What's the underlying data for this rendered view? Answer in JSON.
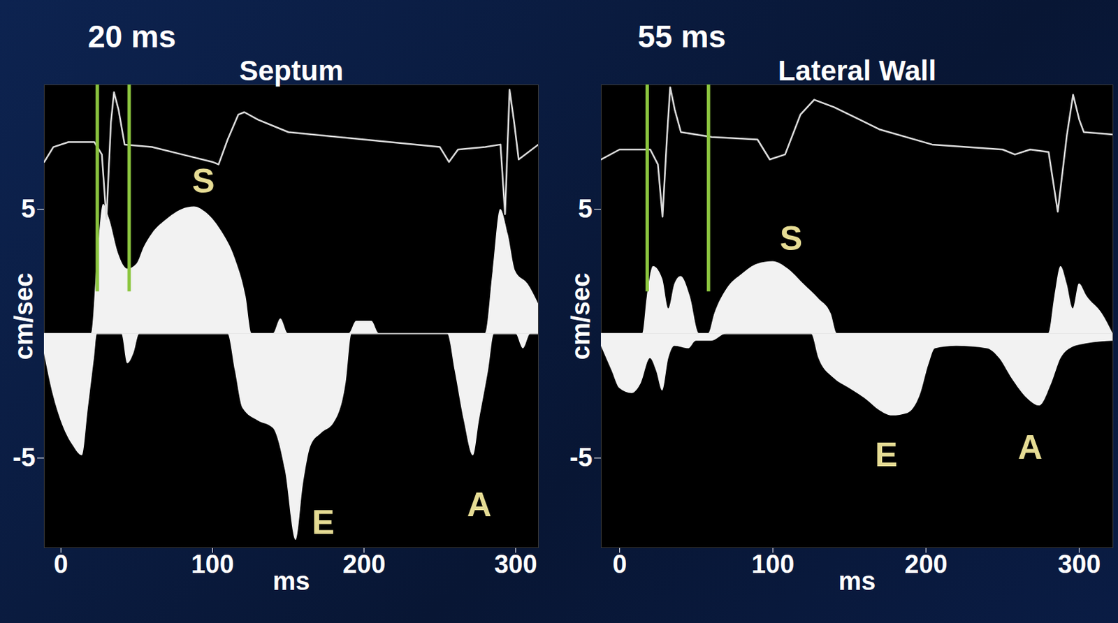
{
  "chart_data": [
    {
      "type": "area",
      "title": "Septum",
      "annotation": "20 ms",
      "x_label": "ms",
      "y_label": "cm/sec",
      "xlim": [
        -11,
        315
      ],
      "xticks": [
        0,
        100,
        200,
        300
      ],
      "ylim": [
        -8.6,
        10
      ],
      "yticks": [
        -5,
        5
      ],
      "marker_lines": {
        "color": "#8cc63f",
        "x": [
          24,
          45
        ]
      },
      "peak_labels": {
        "color": "#e6dc94",
        "items": [
          {
            "text": "S",
            "x": 94,
            "y": 6.1
          },
          {
            "text": "E",
            "x": 173,
            "y": -7.6
          },
          {
            "text": "A",
            "x": 276,
            "y": -6.9
          }
        ]
      },
      "series": [
        {
          "type": "area",
          "color": "#f2f2f2",
          "x": [
            -11,
            -5,
            0,
            20,
            24,
            28,
            32,
            38,
            44,
            50,
            55,
            60,
            70,
            80,
            88,
            95,
            105,
            115,
            122,
            126,
            140,
            145,
            150,
            190,
            195,
            205,
            210,
            280,
            285,
            290,
            295,
            300,
            308,
            315
          ],
          "values": [
            0,
            0,
            0,
            0,
            3.0,
            5.2,
            4.6,
            3.2,
            2.6,
            2.8,
            3.5,
            4.0,
            4.6,
            5.0,
            5.1,
            4.9,
            4.2,
            3.0,
            1.5,
            0,
            0,
            0.6,
            0,
            0,
            0.5,
            0.5,
            0,
            0,
            2.5,
            5.0,
            4.0,
            2.5,
            2.0,
            1.2
          ]
        },
        {
          "type": "area",
          "color": "#f2f2f2",
          "x": [
            -11,
            -5,
            0,
            8,
            14,
            18,
            22,
            24,
            40,
            44,
            48,
            52,
            110,
            115,
            120,
            130,
            140,
            148,
            155,
            160,
            165,
            172,
            180,
            188,
            192,
            255,
            260,
            266,
            272,
            276,
            282,
            286,
            300,
            305,
            310,
            315
          ],
          "values": [
            -0.8,
            -2.5,
            -3.5,
            -4.5,
            -4.9,
            -3.0,
            -1.0,
            0,
            0,
            -1.2,
            -0.8,
            0,
            0,
            -1.5,
            -3.0,
            -3.5,
            -3.8,
            -5.5,
            -8.3,
            -6.0,
            -4.5,
            -4.0,
            -3.6,
            -2.0,
            0,
            0,
            -1.5,
            -3.5,
            -4.9,
            -3.5,
            -1.5,
            0,
            0,
            -0.6,
            0,
            0
          ]
        },
        {
          "type": "line",
          "color": "#dcdcdc",
          "x": [
            -11,
            -5,
            5,
            22,
            27,
            30,
            33,
            35,
            38,
            42,
            60,
            80,
            100,
            104,
            110,
            117,
            121,
            130,
            150,
            200,
            250,
            256,
            262,
            280,
            290,
            293,
            296,
            299,
            302,
            315
          ],
          "values": [
            6.9,
            7.5,
            7.7,
            7.7,
            7.2,
            4.6,
            8.5,
            9.7,
            9.0,
            7.6,
            7.5,
            7.2,
            6.9,
            6.8,
            7.8,
            8.8,
            8.9,
            8.6,
            8.1,
            7.8,
            7.5,
            6.9,
            7.4,
            7.5,
            7.6,
            4.8,
            9.8,
            8.5,
            7.0,
            7.6
          ]
        }
      ]
    },
    {
      "type": "area",
      "title": "Lateral Wall",
      "annotation": "55 ms",
      "x_label": "ms",
      "y_label": "cm/sec",
      "xlim": [
        -12,
        322
      ],
      "xticks": [
        0,
        100,
        200,
        300
      ],
      "ylim": [
        -8.6,
        10
      ],
      "yticks": [
        -5,
        5
      ],
      "marker_lines": {
        "color": "#8cc63f",
        "x": [
          18,
          58
        ]
      },
      "peak_labels": {
        "color": "#e6dc94",
        "items": [
          {
            "text": "S",
            "x": 112,
            "y": 3.8
          },
          {
            "text": "E",
            "x": 174,
            "y": -4.9
          },
          {
            "text": "A",
            "x": 268,
            "y": -4.6
          }
        ]
      },
      "series": [
        {
          "type": "area",
          "color": "#f2f2f2",
          "x": [
            -12,
            15,
            18,
            22,
            28,
            32,
            36,
            40,
            46,
            52,
            58,
            62,
            70,
            80,
            90,
            100,
            110,
            120,
            130,
            138,
            142,
            280,
            284,
            288,
            292,
            296,
            300,
            305,
            315,
            322
          ],
          "values": [
            0,
            0,
            1.5,
            2.7,
            2.2,
            1.0,
            2.0,
            2.3,
            1.5,
            0,
            0,
            0.8,
            1.8,
            2.4,
            2.8,
            2.9,
            2.6,
            2.0,
            1.4,
            0.8,
            0,
            0,
            1.5,
            2.7,
            2.0,
            1.0,
            2.0,
            1.5,
            0.8,
            0
          ]
        },
        {
          "type": "area",
          "color": "#f2f2f2",
          "x": [
            -12,
            -5,
            0,
            8,
            14,
            20,
            24,
            28,
            32,
            36,
            45,
            50,
            60,
            70,
            125,
            130,
            140,
            150,
            160,
            170,
            178,
            188,
            196,
            202,
            206,
            220,
            240,
            248,
            256,
            266,
            274,
            282,
            288,
            294,
            305,
            322
          ],
          "values": [
            -0.5,
            -1.5,
            -2.2,
            -2.4,
            -2.0,
            -1.0,
            -1.5,
            -2.3,
            -1.0,
            -0.5,
            -0.6,
            -0.3,
            -0.3,
            0,
            0,
            -1.0,
            -1.8,
            -2.2,
            -2.6,
            -3.1,
            -3.3,
            -3.2,
            -2.5,
            -1.2,
            -0.6,
            -0.5,
            -0.6,
            -1.0,
            -1.8,
            -2.6,
            -2.9,
            -2.0,
            -1.0,
            -0.6,
            -0.4,
            -0.3
          ]
        },
        {
          "type": "line",
          "color": "#dcdcdc",
          "x": [
            -12,
            0,
            20,
            25,
            28,
            31,
            33,
            36,
            40,
            60,
            90,
            98,
            108,
            118,
            127,
            140,
            170,
            204,
            250,
            258,
            268,
            280,
            286,
            292,
            296,
            300,
            303,
            322
          ],
          "values": [
            7.0,
            7.4,
            7.4,
            6.8,
            4.7,
            8.0,
            9.9,
            9.0,
            8.1,
            7.9,
            7.8,
            7.0,
            7.2,
            8.8,
            9.4,
            9.1,
            8.2,
            7.6,
            7.4,
            7.2,
            7.4,
            7.3,
            4.9,
            8.0,
            9.6,
            8.6,
            8.1,
            8.0
          ]
        }
      ]
    }
  ]
}
